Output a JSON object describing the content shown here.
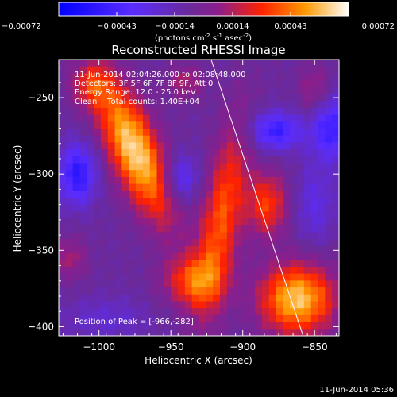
{
  "chart_data": {
    "type": "heatmap",
    "title": "Reconstructed RHESSI Image",
    "xlabel": "Heliocentric X (arcsec)",
    "ylabel": "Heliocentric Y (arcsec)",
    "xlim": [
      -1028,
      -833
    ],
    "ylim": [
      -406,
      -225
    ],
    "x_ticks": [
      -1000,
      -950,
      -900,
      -850
    ],
    "y_ticks": [
      -250,
      -300,
      -350,
      -400
    ],
    "colorbar": {
      "range": [
        -0.00072,
        0.00072
      ],
      "ticks": [
        "-0.00072",
        "-0.00043",
        "-0.00014",
        "0.00014",
        "0.00043",
        "0.00072"
      ],
      "unit_label": "(photons cm-2 s-1 asec-2)"
    },
    "annotations": [
      "11-Jun-2014 02:04:26.000 to 02:08:48.000",
      "Detectors: 3F 5F 6F 7F 8F 9F, Att 0",
      "Energy Range: 12.0 - 25.0 keV",
      "Clean    Total counts: 1.40E+04"
    ],
    "peak_label": "Position of Peak = [-966,-282]",
    "peak": [
      -966,
      -282
    ],
    "limb_line": {
      "x": [
        -922,
        -858
      ],
      "y": [
        -225,
        -406
      ]
    },
    "sources": [
      {
        "x": -975,
        "y": -285,
        "sx": 12,
        "sy": 34,
        "rot": 25,
        "amp": 0.00072
      },
      {
        "x": -915,
        "y": -330,
        "sx": 10,
        "sy": 45,
        "rot": -10,
        "amp": 0.00045
      },
      {
        "x": -935,
        "y": -370,
        "sx": 14,
        "sy": 12,
        "rot": 0,
        "amp": 0.0004
      },
      {
        "x": -862,
        "y": -382,
        "sx": 18,
        "sy": 16,
        "rot": 0,
        "amp": 0.00068
      },
      {
        "x": -883,
        "y": -320,
        "sx": 10,
        "sy": 15,
        "rot": 0,
        "amp": 0.0004
      },
      {
        "x": -1005,
        "y": -242,
        "sx": 10,
        "sy": 10,
        "rot": 0,
        "amp": 0.0003
      },
      {
        "x": -940,
        "y": -240,
        "sx": 9,
        "sy": 8,
        "rot": 0,
        "amp": 0.00022
      },
      {
        "x": -850,
        "y": -245,
        "sx": 8,
        "sy": 12,
        "rot": 0,
        "amp": 0.0002
      },
      {
        "x": -1020,
        "y": -355,
        "sx": 8,
        "sy": 10,
        "rot": 0,
        "amp": 0.0002
      },
      {
        "x": -1015,
        "y": -300,
        "sx": 9,
        "sy": 14,
        "rot": 0,
        "amp": -0.00045
      },
      {
        "x": -877,
        "y": -272,
        "sx": 13,
        "sy": 9,
        "rot": 0,
        "amp": -0.0004
      },
      {
        "x": -943,
        "y": -303,
        "sx": 9,
        "sy": 11,
        "rot": 0,
        "amp": -0.0003
      },
      {
        "x": -838,
        "y": -270,
        "sx": 10,
        "sy": 15,
        "rot": 0,
        "amp": -0.0004
      },
      {
        "x": -995,
        "y": -395,
        "sx": 20,
        "sy": 10,
        "rot": 0,
        "amp": -0.00015
      },
      {
        "x": -850,
        "y": -320,
        "sx": 10,
        "sy": 18,
        "rot": 0,
        "amp": -0.0002
      }
    ],
    "background": -8e-05
  },
  "footer": {
    "timestamp": "11-Jun-2014 05:36"
  }
}
